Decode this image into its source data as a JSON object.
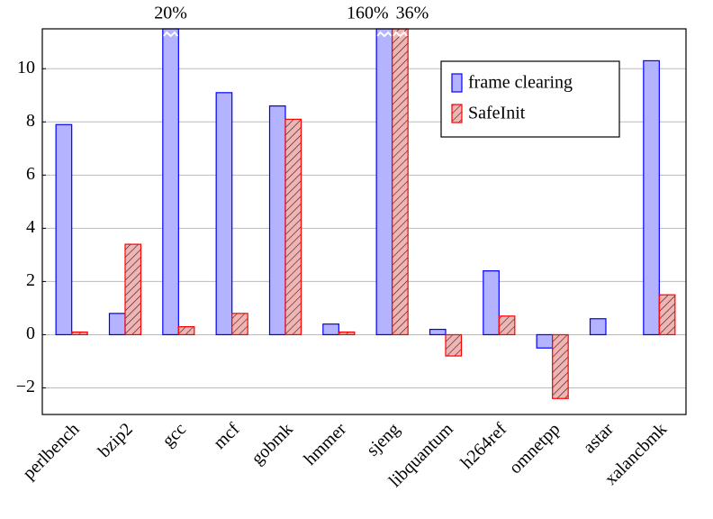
{
  "chart_data": {
    "type": "bar",
    "categories": [
      "perlbench",
      "bzip2",
      "gcc",
      "mcf",
      "gobmk",
      "hmmer",
      "sjeng",
      "libquantum",
      "h264ref",
      "omnetpp",
      "astar",
      "xalancbmk"
    ],
    "series": [
      {
        "name": "frame clearing",
        "color": "#0000ff",
        "fill": "#b3b3ff",
        "values": [
          7.9,
          0.8,
          20,
          9.1,
          8.6,
          0.4,
          160,
          0.2,
          2.4,
          -0.5,
          0.6,
          10.3
        ],
        "value_labels": [
          null,
          null,
          "20%",
          null,
          null,
          null,
          "160%",
          null,
          null,
          null,
          null,
          null
        ]
      },
      {
        "name": "SafeInit",
        "color": "#ff0000",
        "fill": "#f2b3b3",
        "hatch": true,
        "values": [
          0.1,
          3.4,
          0.3,
          0.8,
          8.1,
          0.1,
          36,
          -0.8,
          0.7,
          -2.4,
          0.0,
          1.5
        ],
        "value_labels": [
          null,
          null,
          null,
          null,
          null,
          null,
          "36%",
          null,
          null,
          null,
          null,
          null
        ]
      }
    ],
    "ylim": [
      -3,
      11.5
    ],
    "yticks": [
      {
        "value": -2,
        "label": "−2"
      },
      0,
      2,
      4,
      6,
      8,
      10
    ],
    "grid": true,
    "legend": "top-right"
  }
}
